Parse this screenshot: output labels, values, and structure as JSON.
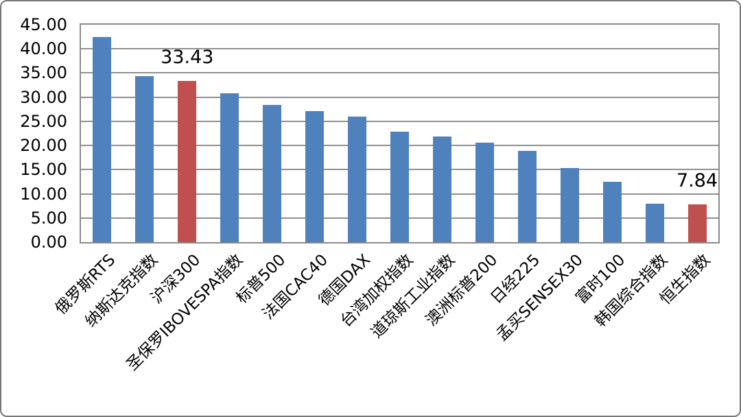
{
  "chart_data": {
    "type": "bar",
    "categories": [
      "俄罗斯RTS",
      "纳斯达克指数",
      "沪深300",
      "圣保罗IBOVESPA指数",
      "标普500",
      "法国CAC40",
      "德国DAX",
      "台湾加权指数",
      "道琼斯工业指数",
      "澳洲标普200",
      "日经225",
      "孟买SENSEX30",
      "富时100",
      "韩国综合指数",
      "恒生指数"
    ],
    "values": [
      42.5,
      34.4,
      33.43,
      30.8,
      28.4,
      27.1,
      26.0,
      22.9,
      21.8,
      20.6,
      18.9,
      15.4,
      12.5,
      8.0,
      7.84
    ],
    "highlight_indices": [
      2,
      14
    ],
    "default_bar_color": "#4F81BD",
    "highlight_bar_color": "#C0504D",
    "data_labels": [
      {
        "index": 2,
        "text": "33.43"
      },
      {
        "index": 14,
        "text": "7.84"
      }
    ],
    "yticks": [
      "0.00",
      "5.00",
      "10.00",
      "15.00",
      "20.00",
      "25.00",
      "30.00",
      "35.00",
      "40.00",
      "45.00"
    ],
    "ylim": [
      0,
      45
    ],
    "grid": true,
    "legend": false,
    "x_label_rotation_deg": 45
  }
}
